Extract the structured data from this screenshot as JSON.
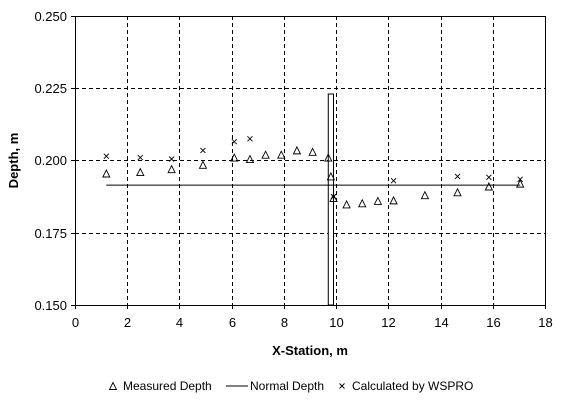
{
  "chart_data": {
    "type": "scatter",
    "title": "",
    "xlabel": "X-Station, m",
    "ylabel": "Depth, m",
    "xlim": [
      0,
      18
    ],
    "ylim": [
      0.15,
      0.25
    ],
    "x_ticks": [
      0,
      2,
      4,
      6,
      8,
      10,
      12,
      14,
      16,
      18
    ],
    "y_ticks": [
      0.15,
      0.175,
      0.2,
      0.225,
      0.25
    ],
    "x_tick_labels": [
      "0",
      "2",
      "4",
      "6",
      "8",
      "10",
      "12",
      "14",
      "16",
      "18"
    ],
    "y_tick_labels": [
      "0.150",
      "0.175",
      "0.200",
      "0.225",
      "0.250"
    ],
    "grid": true,
    "grid_style": "dashed",
    "legend_position": "bottom",
    "series": [
      {
        "name": "Measured Depth",
        "marker": "triangle",
        "points": [
          [
            1.2,
            0.1955
          ],
          [
            2.5,
            0.196
          ],
          [
            3.7,
            0.197
          ],
          [
            4.9,
            0.1985
          ],
          [
            6.1,
            0.201
          ],
          [
            6.7,
            0.2005
          ],
          [
            7.3,
            0.202
          ],
          [
            7.9,
            0.202
          ],
          [
            8.5,
            0.2035
          ],
          [
            9.1,
            0.203
          ],
          [
            9.7,
            0.201
          ],
          [
            9.8,
            0.1945
          ],
          [
            9.9,
            0.187
          ],
          [
            10.4,
            0.1848
          ],
          [
            11.0,
            0.1852
          ],
          [
            11.6,
            0.186
          ],
          [
            12.2,
            0.1862
          ],
          [
            13.4,
            0.188
          ],
          [
            14.65,
            0.189
          ],
          [
            15.85,
            0.191
          ],
          [
            17.05,
            0.192
          ]
        ]
      },
      {
        "name": "Normal Depth",
        "marker": "line",
        "points": [
          [
            1.2,
            0.1915
          ],
          [
            17.05,
            0.1915
          ]
        ]
      },
      {
        "name": "Calculated by WSPRO",
        "marker": "x",
        "points": [
          [
            1.2,
            0.2015
          ],
          [
            2.5,
            0.201
          ],
          [
            3.7,
            0.2005
          ],
          [
            4.9,
            0.2035
          ],
          [
            6.1,
            0.2065
          ],
          [
            6.7,
            0.2075
          ],
          [
            9.9,
            0.1875
          ],
          [
            12.2,
            0.193
          ],
          [
            14.65,
            0.1945
          ],
          [
            15.85,
            0.1942
          ],
          [
            17.05,
            0.1935
          ]
        ]
      }
    ],
    "annotations": [
      {
        "type": "rectangle",
        "x_range": [
          9.7,
          9.9
        ],
        "y_range": [
          0.15,
          0.223
        ]
      }
    ]
  }
}
